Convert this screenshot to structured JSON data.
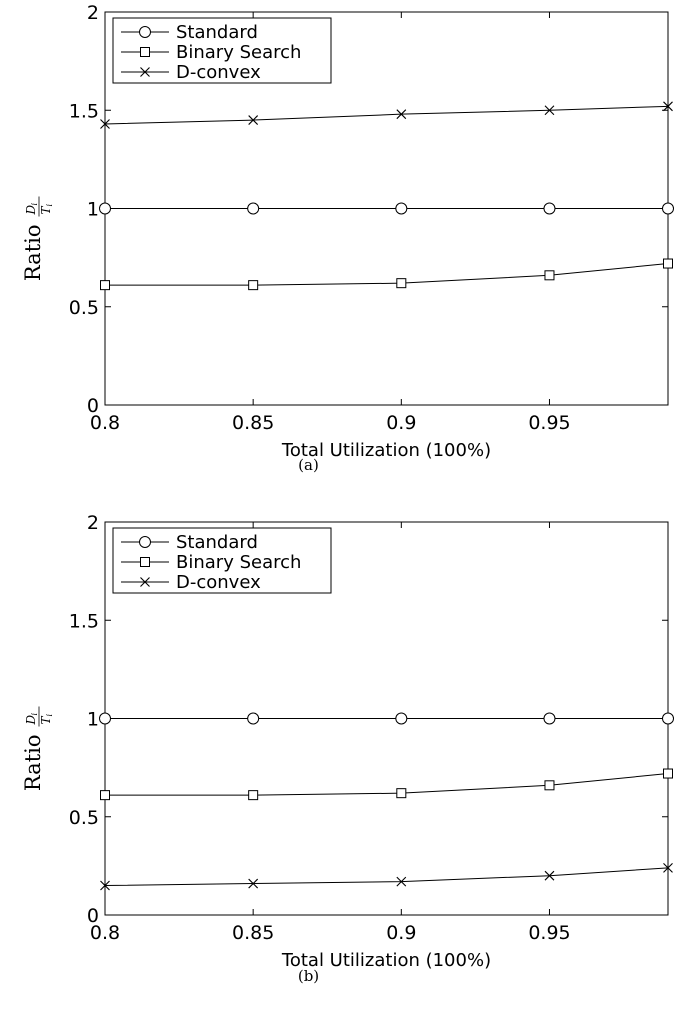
{
  "chart_data": [
    {
      "type": "line",
      "caption": "(a)",
      "xlabel": "Total Utilization (100%)",
      "ylabel": {
        "prefix": "Ratio",
        "numerator": "D",
        "numerator_sub": "i",
        "denominator": "T",
        "denominator_sub": "i"
      },
      "x": [
        0.8,
        0.85,
        0.9,
        0.95,
        0.99
      ],
      "xlim": [
        0.8,
        0.99
      ],
      "ylim": [
        0,
        2
      ],
      "xticks": [
        "0.8",
        "0.85",
        "0.9",
        "0.95"
      ],
      "yticks": [
        "0",
        "0.5",
        "1",
        "1.5",
        "2"
      ],
      "legend_position": "top-left",
      "grid": false,
      "series": [
        {
          "name": "Standard",
          "marker": "circle",
          "values": [
            1,
            1,
            1,
            1,
            1
          ]
        },
        {
          "name": "Binary Search",
          "marker": "square",
          "values": [
            0.61,
            0.61,
            0.62,
            0.66,
            0.72
          ]
        },
        {
          "name": "D-convex",
          "marker": "x",
          "values": [
            1.43,
            1.45,
            1.48,
            1.5,
            1.52
          ]
        }
      ]
    },
    {
      "type": "line",
      "caption": "(b)",
      "xlabel": "Total Utilization (100%)",
      "ylabel": {
        "prefix": "Ratio",
        "numerator": "D",
        "numerator_sub": "i",
        "denominator": "T",
        "denominator_sub": "i"
      },
      "x": [
        0.8,
        0.85,
        0.9,
        0.95,
        0.99
      ],
      "xlim": [
        0.8,
        0.99
      ],
      "ylim": [
        0,
        2
      ],
      "xticks": [
        "0.8",
        "0.85",
        "0.9",
        "0.95"
      ],
      "yticks": [
        "0",
        "0.5",
        "1",
        "1.5",
        "2"
      ],
      "legend_position": "top-left",
      "grid": false,
      "series": [
        {
          "name": "Standard",
          "marker": "circle",
          "values": [
            1,
            1,
            1,
            1,
            1
          ]
        },
        {
          "name": "Binary Search",
          "marker": "square",
          "values": [
            0.61,
            0.61,
            0.62,
            0.66,
            0.72
          ]
        },
        {
          "name": "D-convex",
          "marker": "x",
          "values": [
            0.15,
            0.16,
            0.17,
            0.2,
            0.24
          ]
        }
      ]
    }
  ]
}
